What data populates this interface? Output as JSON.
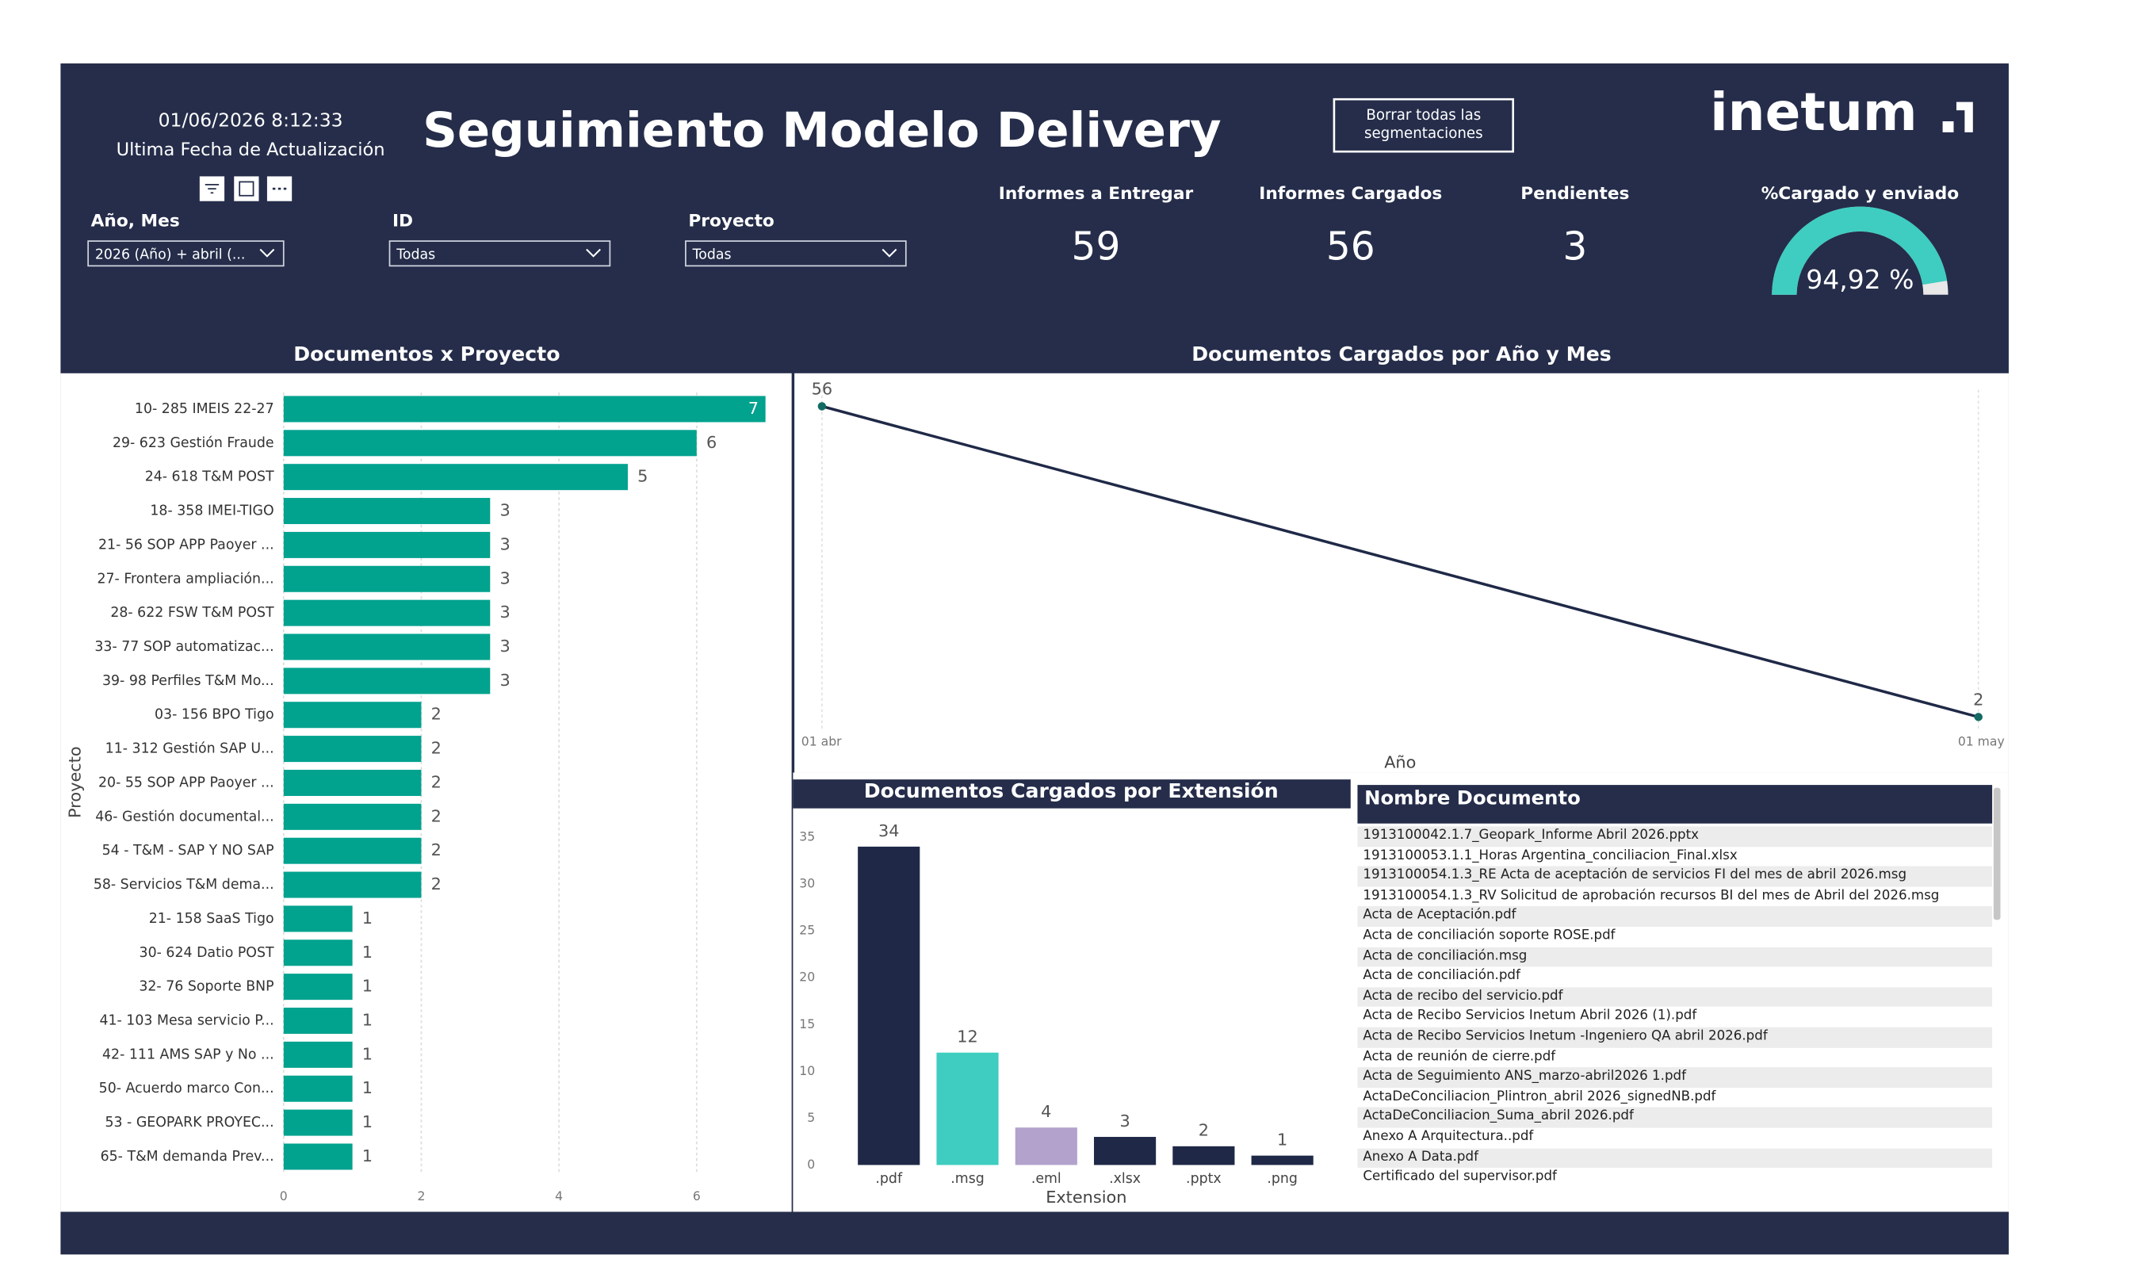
{
  "header": {
    "timestamp": "01/06/2026 8:12:33",
    "timestamp_label": "Ultima Fecha de Actualización",
    "title": "Seguimiento Modelo Delivery",
    "clear_button": "Borrar todas las segmentaciones",
    "logo": "inetum"
  },
  "slicers": [
    {
      "label": "Año, Mes",
      "value": "2026 (Año) + abril (..."
    },
    {
      "label": "ID",
      "value": "Todas"
    },
    {
      "label": "Proyecto",
      "value": "Todas"
    }
  ],
  "kpis": [
    {
      "label": "Informes a Entregar",
      "value": 59
    },
    {
      "label": "Informes Cargados",
      "value": 56
    },
    {
      "label": "Pendientes",
      "value": 3
    }
  ],
  "gauge": {
    "label": "%Cargado y enviado",
    "value": 94.92,
    "value_label": "94,92 %",
    "color": "#3ecdc0"
  },
  "chart_data": [
    {
      "type": "hbar",
      "title": "Documentos x Proyecto",
      "y_label": "Proyecto",
      "categories": [
        "10- 285 IMEIS 22-27",
        "29- 623 Gestión Fraude",
        "24- 618 T&M POST",
        "18- 358 IMEI-TIGO",
        "21- 56 SOP APP Paoyer ...",
        "27- Frontera ampliación...",
        "28- 622 FSW T&M POST",
        "33- 77 SOP automatizac...",
        "39- 98 Perfiles T&M Mo...",
        "03- 156 BPO Tigo",
        "11- 312 Gestión SAP U...",
        "20- 55 SOP APP Paoyer ...",
        "46- Gestión documental...",
        "54 - T&M - SAP Y NO SAP",
        "58- Servicios T&M dema...",
        "21- 158 SaaS Tigo",
        "30- 624 Datio POST",
        "32- 76 Soporte BNP",
        "41- 103 Mesa servicio P...",
        "42- 111 AMS SAP y No ...",
        "50- Acuerdo marco Con...",
        "53 - GEOPARK PROYEC...",
        "65- T&M demanda Prev..."
      ],
      "values": [
        7,
        6,
        5,
        3,
        3,
        3,
        3,
        3,
        3,
        2,
        2,
        2,
        2,
        2,
        2,
        1,
        1,
        1,
        1,
        1,
        1,
        1,
        1
      ],
      "color": "#01a28e",
      "xlim": [
        0,
        7
      ],
      "xticks": [
        0,
        2,
        4,
        6
      ],
      "grid": true
    },
    {
      "type": "line",
      "title": "Documentos Cargados por Año y Mes",
      "x_label": "Año",
      "categories": [
        "01 abr",
        "01 may"
      ],
      "values": [
        56,
        2
      ],
      "color": "#1f2947"
    },
    {
      "type": "bar",
      "title": "Documentos Cargados por Extensión",
      "x_label": "Extension",
      "categories": [
        ".pdf",
        ".msg",
        ".eml",
        ".xlsx",
        ".pptx",
        ".png"
      ],
      "values": [
        34,
        12,
        4,
        3,
        2,
        1
      ],
      "colors": [
        "#1f2947",
        "#3ecdc0",
        "#b3a2cc",
        "#1f2947",
        "#1f2947",
        "#1f2947"
      ],
      "ylim": [
        0,
        35
      ],
      "yticks": [
        0,
        5,
        10,
        15,
        20,
        25,
        30,
        35
      ]
    }
  ],
  "table": {
    "header": "Nombre Documento",
    "rows": [
      "1913100042.1.7_Geopark_Informe Abril 2026.pptx",
      "1913100053.1.1_Horas Argentina_conciliacion_Final.xlsx",
      "1913100054.1.3_RE Acta de aceptación de servicios FI del mes de abril 2026.msg",
      "1913100054.1.3_RV Solicitud de aprobación recursos BI del mes de Abril del 2026.msg",
      "Acta de Aceptación.pdf",
      "Acta de conciliación soporte ROSE.pdf",
      "Acta de conciliación.msg",
      "Acta de conciliación.pdf",
      "Acta de recibo del servicio.pdf",
      "Acta de Recibo Servicios Inetum Abril 2026 (1).pdf",
      "Acta de Recibo Servicios Inetum -Ingeniero QA abril 2026.pdf",
      "Acta de reunión de cierre.pdf",
      "Acta de Seguimiento ANS_marzo-abril2026 1.pdf",
      "ActaDeConciliacion_Plintron_abril 2026_signedNB.pdf",
      "ActaDeConciliacion_Suma_abril 2026.pdf",
      "Anexo A Arquitectura..pdf",
      "Anexo A Data.pdf",
      "Certificado del supervisor.pdf"
    ]
  }
}
